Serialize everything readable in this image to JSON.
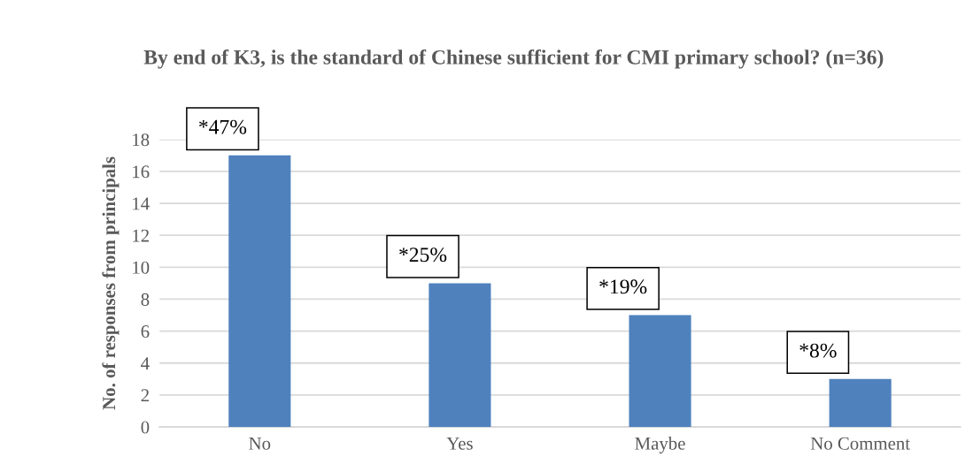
{
  "chart_data": {
    "type": "bar",
    "title": "By end of K3, is the standard of Chinese sufficient for CMI primary school? (n=36)",
    "ylabel": "No. of responses from principals",
    "categories": [
      "No",
      "Yes",
      "Maybe",
      "No Comment"
    ],
    "values": [
      17,
      9,
      7,
      3
    ],
    "annotations": [
      {
        "text": "*47%",
        "x": "No",
        "y": 17
      },
      {
        "text": "*25%",
        "x": "Yes",
        "y": 9
      },
      {
        "text": "*19%",
        "x": "Maybe",
        "y": 7
      },
      {
        "text": "*8%",
        "x": "No Comment",
        "y": 3
      }
    ],
    "color": "#4f81bd",
    "ylim": [
      0,
      18
    ],
    "yticks": [
      0,
      2,
      4,
      6,
      8,
      10,
      12,
      14,
      16,
      18
    ],
    "grid": "y"
  }
}
